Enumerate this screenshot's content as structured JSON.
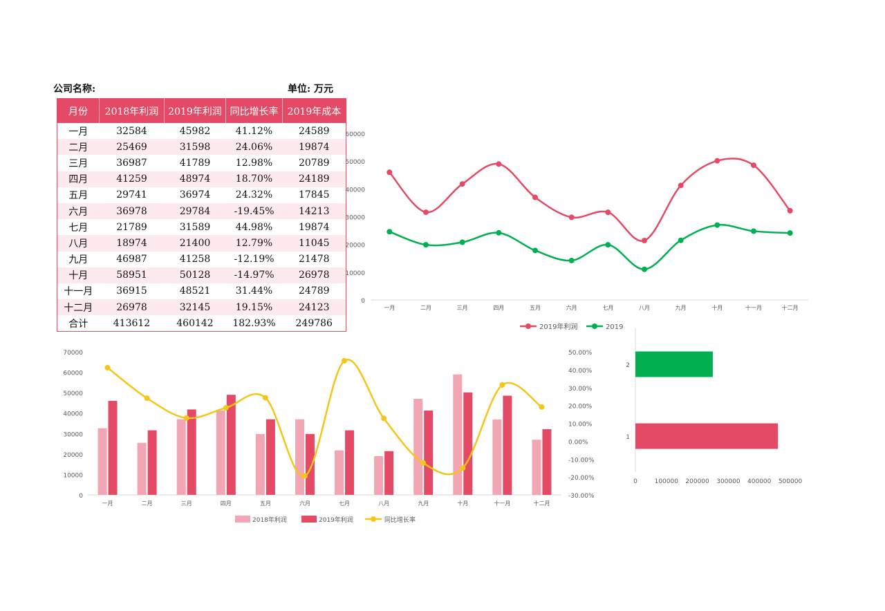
{
  "header": {
    "company_label": "公司名称:",
    "unit_label": "单位: 万元"
  },
  "table": {
    "columns": [
      "月份",
      "2018年利润",
      "2019年利润",
      "同比增长率",
      "2019年成本"
    ],
    "rows": [
      [
        "一月",
        "32584",
        "45982",
        "41.12%",
        "24589"
      ],
      [
        "二月",
        "25469",
        "31598",
        "24.06%",
        "19874"
      ],
      [
        "三月",
        "36987",
        "41789",
        "12.98%",
        "20789"
      ],
      [
        "四月",
        "41259",
        "48974",
        "18.70%",
        "24189"
      ],
      [
        "五月",
        "29741",
        "36974",
        "24.32%",
        "17845"
      ],
      [
        "六月",
        "36978",
        "29784",
        "-19.45%",
        "14213"
      ],
      [
        "七月",
        "21789",
        "31589",
        "44.98%",
        "19874"
      ],
      [
        "八月",
        "18974",
        "21400",
        "12.79%",
        "11045"
      ],
      [
        "九月",
        "46987",
        "41258",
        "-12.19%",
        "21478"
      ],
      [
        "十月",
        "58951",
        "50128",
        "-14.97%",
        "26978"
      ],
      [
        "十一月",
        "36915",
        "48521",
        "31.44%",
        "24789"
      ],
      [
        "十二月",
        "26978",
        "32145",
        "19.15%",
        "24123"
      ]
    ],
    "total": [
      "合计",
      "413612",
      "460142",
      "182.93%",
      "249786"
    ]
  },
  "colors": {
    "red": "#e44a66",
    "pink": "#f2a5b2",
    "green": "#00b050",
    "yellow": "#f5c518",
    "axis": "#d9d9d9",
    "text": "#595959"
  },
  "chart_data": [
    {
      "type": "line",
      "smooth": true,
      "categories": [
        "一月",
        "二月",
        "三月",
        "四月",
        "五月",
        "六月",
        "七月",
        "八月",
        "九月",
        "十月",
        "十一月",
        "十二月"
      ],
      "series": [
        {
          "name": "2019年利润",
          "color": "#e44a66",
          "values": [
            45982,
            31598,
            41789,
            48974,
            36974,
            29784,
            31589,
            21400,
            41258,
            50128,
            48521,
            32145
          ]
        },
        {
          "name": "2019",
          "color": "#00b050",
          "values": [
            24589,
            19874,
            20789,
            24189,
            17845,
            14213,
            19874,
            11045,
            21478,
            26978,
            24789,
            24123
          ]
        }
      ],
      "ylim": [
        0,
        60000
      ],
      "yticks": [
        "0",
        "10000",
        "20000",
        "30000",
        "40000",
        "50000",
        "60000"
      ],
      "legend": "bottom"
    },
    {
      "type": "bar",
      "categories": [
        "一月",
        "二月",
        "三月",
        "四月",
        "五月",
        "六月",
        "七月",
        "八月",
        "九月",
        "十月",
        "十一月",
        "十二月"
      ],
      "series": [
        {
          "name": "2018年利润",
          "color": "#f2a5b2",
          "values": [
            32584,
            25469,
            36987,
            41259,
            29741,
            36978,
            21789,
            18974,
            46987,
            58951,
            36915,
            26978
          ]
        },
        {
          "name": "2019年利润",
          "color": "#e44a66",
          "values": [
            45982,
            31598,
            41789,
            48974,
            36974,
            29784,
            31589,
            21400,
            41258,
            50128,
            48521,
            32145
          ]
        },
        {
          "name": "同比增长率",
          "type": "line",
          "axis": "secondary",
          "color": "#f5c518",
          "values": [
            41.12,
            24.06,
            12.98,
            18.7,
            24.32,
            -19.45,
            44.98,
            12.79,
            -12.19,
            -14.97,
            31.44,
            19.15
          ]
        }
      ],
      "ylim": [
        0,
        70000
      ],
      "yticks": [
        "0",
        "10000",
        "20000",
        "30000",
        "40000",
        "50000",
        "60000",
        "70000"
      ],
      "y2lim": [
        -30,
        50
      ],
      "y2ticks": [
        "-30.00%",
        "-20.00%",
        "-10.00%",
        "0.00%",
        "10.00%",
        "20.00%",
        "30.00%",
        "40.00%",
        "50.00%"
      ],
      "legend": "bottom"
    },
    {
      "type": "bar",
      "orientation": "horizontal",
      "categories": [
        "1",
        "2"
      ],
      "values": [
        460142,
        249786
      ],
      "colors": [
        "#e44a66",
        "#00b050"
      ],
      "xlim": [
        0,
        500000
      ],
      "xticks": [
        "0",
        "100000",
        "200000",
        "300000",
        "400000",
        "500000"
      ]
    }
  ]
}
